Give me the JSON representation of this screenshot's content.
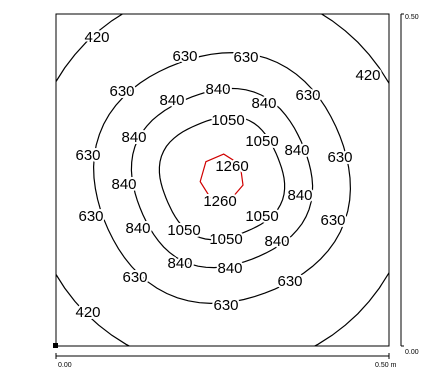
{
  "chart_data": {
    "type": "contour",
    "contours": [
      {
        "level": 420,
        "color": "#000000"
      },
      {
        "level": 630,
        "color": "#000000"
      },
      {
        "level": 840,
        "color": "#000000"
      },
      {
        "level": 1050,
        "color": "#000000"
      },
      {
        "level": 1260,
        "color": "#d00000"
      }
    ],
    "contour_labels": [
      420,
      630,
      630,
      420,
      630,
      840,
      840,
      840,
      630,
      1050,
      840,
      1050,
      630,
      840,
      630,
      1260,
      840,
      1260,
      840,
      630,
      840,
      1050,
      1050,
      1050,
      840,
      630,
      840,
      840,
      630,
      630,
      420,
      630
    ],
    "xlim": [
      0,
      0.5
    ],
    "ylim": [
      0,
      0.5
    ],
    "xticks": [
      {
        "value": 0,
        "label": "0.00"
      },
      {
        "value": 0.5,
        "label": "0.50 m"
      }
    ],
    "yticks": [
      {
        "value": 0,
        "label": "0.00"
      },
      {
        "value": 0.5,
        "label": "0.50"
      }
    ]
  }
}
